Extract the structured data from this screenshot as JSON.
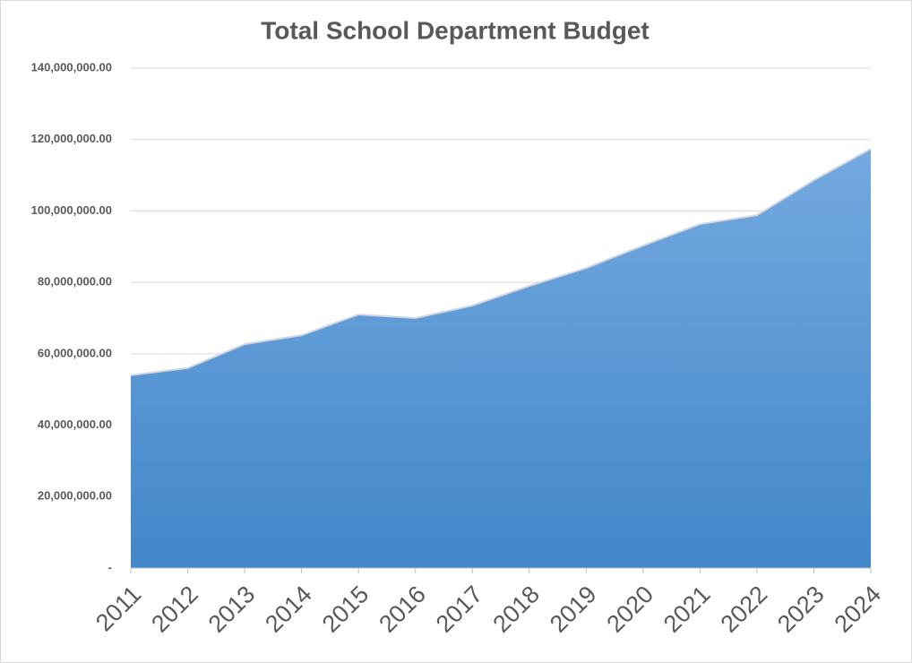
{
  "chart_data": {
    "type": "area",
    "title": "Total School Department Budget",
    "categories": [
      "2011",
      "2012",
      "2013",
      "2014",
      "2015",
      "2016",
      "2017",
      "2018",
      "2019",
      "2020",
      "2021",
      "2022",
      "2023",
      "2024"
    ],
    "values": [
      54000000,
      56000000,
      62700000,
      65200000,
      71000000,
      70000000,
      73500000,
      79000000,
      84000000,
      90300000,
      96300000,
      98800000,
      108600000,
      117400000
    ],
    "gradient": [
      "#74a9e0",
      "#4287c9"
    ],
    "ylim": [
      0,
      140000000
    ],
    "yticks": [
      {
        "value": 0,
        "label": "-"
      },
      {
        "value": 20000000,
        "label": "20,000,000.00"
      },
      {
        "value": 40000000,
        "label": "40,000,000.00"
      },
      {
        "value": 60000000,
        "label": "60,000,000.00"
      },
      {
        "value": 80000000,
        "label": "80,000,000.00"
      },
      {
        "value": 100000000,
        "label": "100,000,000.00"
      },
      {
        "value": 120000000,
        "label": "120,000,000.00"
      },
      {
        "value": 140000000,
        "label": "140,000,000.00"
      }
    ],
    "grid": true
  }
}
